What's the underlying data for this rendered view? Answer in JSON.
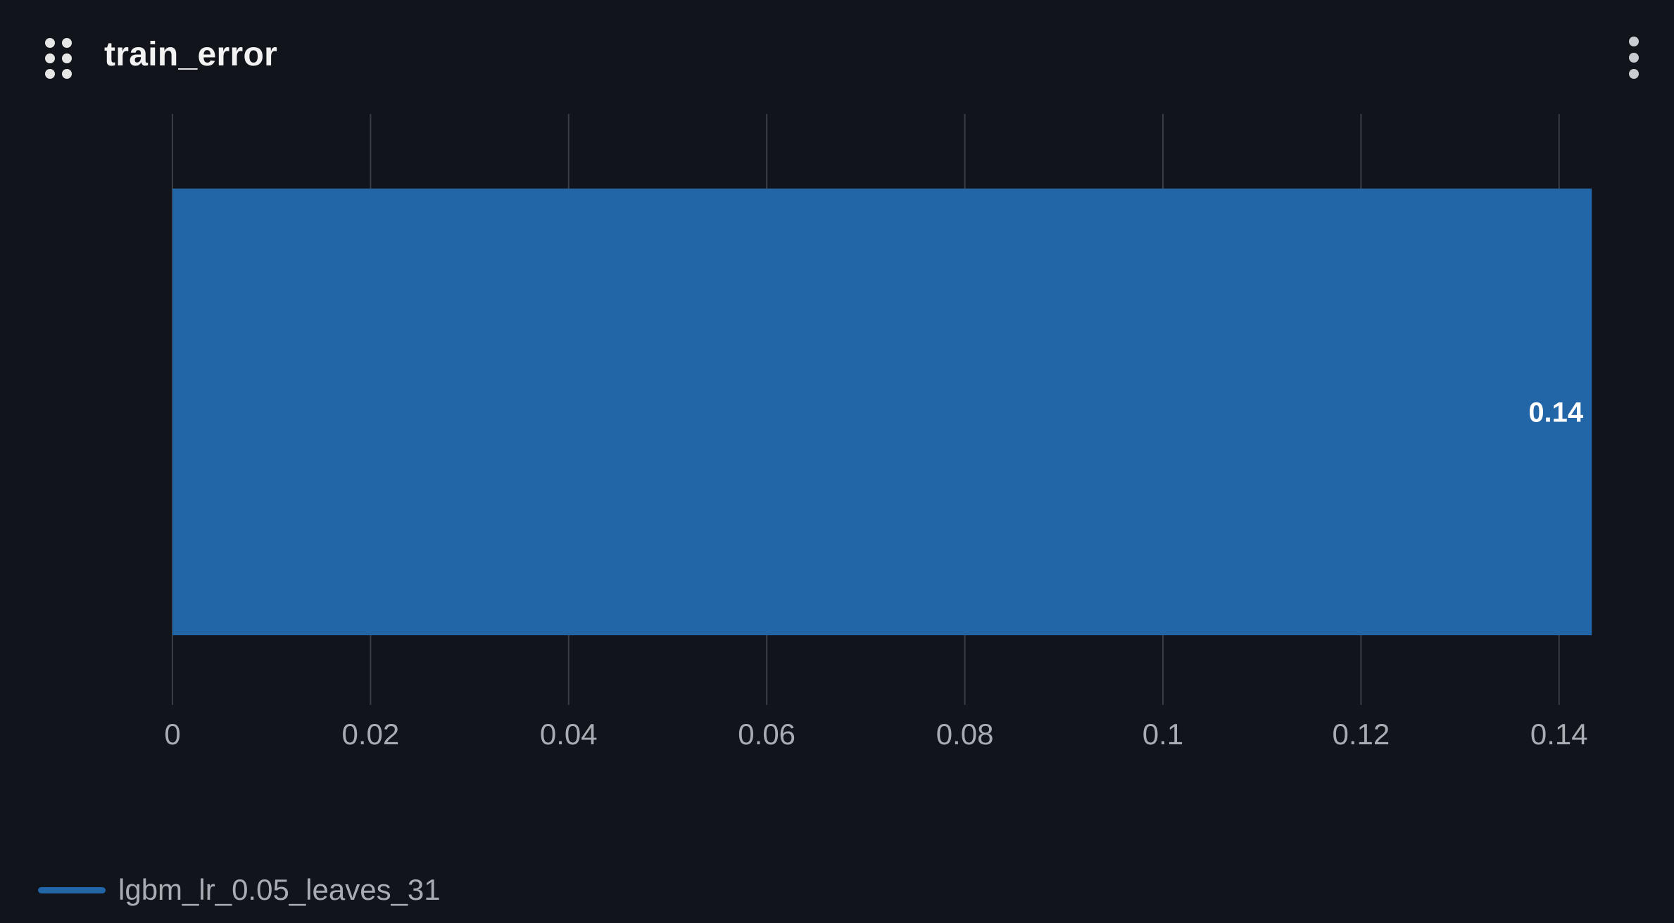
{
  "panel": {
    "title": "train_error",
    "drag_icon": "drag-dots-icon",
    "menu_icon": "kebab-menu-icon"
  },
  "colors": {
    "background": "#11141a",
    "grid": "#3a3d44",
    "bar": "#2266a8",
    "tick_text": "#a9adb3",
    "bar_label": "#ffffff"
  },
  "chart_data": {
    "type": "bar",
    "orientation": "horizontal",
    "title": "train_error",
    "xlabel": "",
    "ylabel": "",
    "xlim": [
      0,
      0.1435
    ],
    "xticks": [
      {
        "value": 0,
        "label": "0"
      },
      {
        "value": 0.02,
        "label": "0.02"
      },
      {
        "value": 0.04,
        "label": "0.04"
      },
      {
        "value": 0.06,
        "label": "0.06"
      },
      {
        "value": 0.08,
        "label": "0.08"
      },
      {
        "value": 0.1,
        "label": "0.1"
      },
      {
        "value": 0.12,
        "label": "0.12"
      },
      {
        "value": 0.14,
        "label": "0.14"
      }
    ],
    "grid": true,
    "legend_position": "bottom-left",
    "series": [
      {
        "name": "lgbm_lr_0.05_leaves_31",
        "color": "#2266a8",
        "value": 0.1433,
        "value_label": "0.14"
      }
    ]
  }
}
